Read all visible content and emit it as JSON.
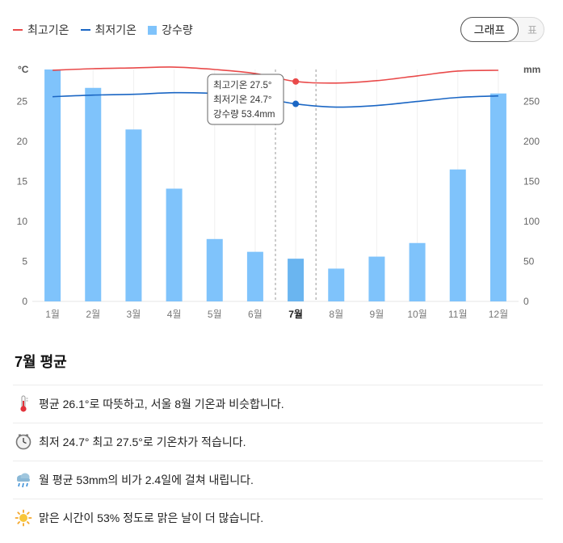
{
  "legend": {
    "max_label": "최고기온",
    "min_label": "최저기온",
    "rain_label": "강수량"
  },
  "toggle": {
    "graph_label": "그래프",
    "table_label": "표"
  },
  "colors": {
    "max_line": "#e94a4a",
    "min_line": "#1a66c4",
    "bar": "#7fc3fb",
    "bar_selected": "#6ab5f0"
  },
  "chart_data": {
    "type": "bar+line",
    "categories": [
      "1월",
      "2월",
      "3월",
      "4월",
      "5월",
      "6월",
      "7월",
      "8월",
      "9월",
      "10월",
      "11월",
      "12월"
    ],
    "series": [
      {
        "name": "최고기온",
        "type": "line",
        "axis": "left",
        "values": [
          28.9,
          29.1,
          29.2,
          29.3,
          29.0,
          28.5,
          27.5,
          27.3,
          27.6,
          28.2,
          28.8,
          28.9
        ]
      },
      {
        "name": "최저기온",
        "type": "line",
        "axis": "left",
        "values": [
          25.6,
          25.8,
          25.9,
          26.1,
          26.0,
          25.6,
          24.7,
          24.3,
          24.5,
          25.0,
          25.5,
          25.7
        ]
      },
      {
        "name": "강수량",
        "type": "bar",
        "axis": "right",
        "values": [
          290,
          267,
          215,
          141,
          78,
          62,
          53.4,
          41,
          56,
          73,
          165,
          260
        ]
      }
    ],
    "y_left": {
      "label": "°C",
      "ticks": [
        0,
        5,
        10,
        15,
        20,
        25
      ],
      "range": [
        0,
        29
      ]
    },
    "y_right": {
      "label": "mm",
      "ticks": [
        0,
        50,
        100,
        150,
        200,
        250
      ],
      "range": [
        0,
        290
      ]
    },
    "selected_index": 6,
    "tooltip": {
      "max_text": "최고기온 27.5°",
      "min_text": "최저기온 24.7°",
      "rain_text": "강수량 53.4mm"
    }
  },
  "summary": {
    "title": "7월 평균",
    "items": [
      {
        "icon": "thermometer-icon",
        "text": "평균 26.1°로 따뜻하고, 서울 8월 기온과 비슷합니다."
      },
      {
        "icon": "clock-icon",
        "text": "최저 24.7° 최고 27.5°로 기온차가 적습니다."
      },
      {
        "icon": "rain-cloud-icon",
        "text": "월 평균 53mm의 비가 2.4일에 걸쳐 내립니다."
      },
      {
        "icon": "sun-icon",
        "text": "맑은 시간이 53% 정도로 맑은 날이 더 많습니다."
      }
    ]
  }
}
